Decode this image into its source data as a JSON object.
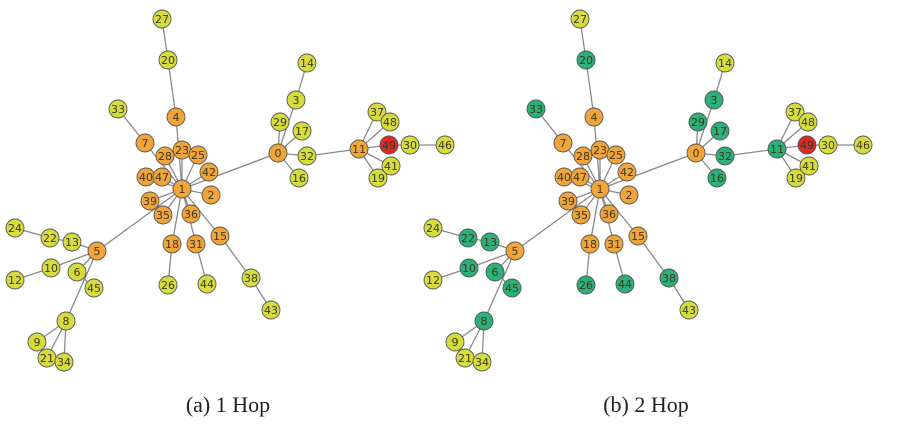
{
  "colors": {
    "yellow": "#d6dc3b",
    "orange": "#f0a43a",
    "green": "#2bb07a",
    "red": "#e0262a",
    "edge": "#8a8a8a",
    "stroke": "#555555"
  },
  "graph": {
    "nodes": [
      "0",
      "1",
      "2",
      "3",
      "4",
      "5",
      "6",
      "7",
      "8",
      "9",
      "10",
      "11",
      "12",
      "13",
      "14",
      "15",
      "16",
      "17",
      "18",
      "19",
      "20",
      "21",
      "22",
      "23",
      "24",
      "25",
      "26",
      "27",
      "28",
      "29",
      "30",
      "31",
      "32",
      "33",
      "34",
      "35",
      "36",
      "37",
      "38",
      "39",
      "40",
      "41",
      "42",
      "43",
      "44",
      "45",
      "46",
      "47",
      "48",
      "49"
    ],
    "edges": [
      [
        "27",
        "20"
      ],
      [
        "20",
        "4"
      ],
      [
        "4",
        "1"
      ],
      [
        "33",
        "7"
      ],
      [
        "7",
        "1"
      ],
      [
        "1",
        "28"
      ],
      [
        "1",
        "23"
      ],
      [
        "1",
        "25"
      ],
      [
        "1",
        "40"
      ],
      [
        "1",
        "47"
      ],
      [
        "1",
        "42"
      ],
      [
        "1",
        "2"
      ],
      [
        "1",
        "39"
      ],
      [
        "1",
        "35"
      ],
      [
        "1",
        "36"
      ],
      [
        "1",
        "18"
      ],
      [
        "1",
        "31"
      ],
      [
        "1",
        "15"
      ],
      [
        "1",
        "5"
      ],
      [
        "1",
        "0"
      ],
      [
        "18",
        "26"
      ],
      [
        "31",
        "44"
      ],
      [
        "15",
        "38"
      ],
      [
        "38",
        "43"
      ],
      [
        "5",
        "13"
      ],
      [
        "13",
        "22"
      ],
      [
        "22",
        "24"
      ],
      [
        "5",
        "10"
      ],
      [
        "10",
        "12"
      ],
      [
        "5",
        "6"
      ],
      [
        "6",
        "45"
      ],
      [
        "5",
        "8"
      ],
      [
        "8",
        "9"
      ],
      [
        "8",
        "21"
      ],
      [
        "8",
        "34"
      ],
      [
        "0",
        "3"
      ],
      [
        "3",
        "14"
      ],
      [
        "0",
        "29"
      ],
      [
        "0",
        "17"
      ],
      [
        "0",
        "16"
      ],
      [
        "0",
        "32"
      ],
      [
        "32",
        "11"
      ],
      [
        "11",
        "37"
      ],
      [
        "11",
        "48"
      ],
      [
        "11",
        "49"
      ],
      [
        "49",
        "30"
      ],
      [
        "30",
        "46"
      ],
      [
        "11",
        "41"
      ],
      [
        "11",
        "19"
      ]
    ]
  },
  "panels": [
    {
      "id": "a",
      "caption": "(a) 1 Hop",
      "colors": {
        "0": "orange",
        "1": "orange",
        "2": "orange",
        "4": "orange",
        "5": "orange",
        "7": "orange",
        "11": "orange",
        "15": "orange",
        "18": "orange",
        "23": "orange",
        "25": "orange",
        "28": "orange",
        "31": "orange",
        "35": "orange",
        "36": "orange",
        "39": "orange",
        "40": "orange",
        "42": "orange",
        "47": "orange",
        "49": "red"
      }
    },
    {
      "id": "b",
      "caption": "(b) 2 Hop",
      "colors": {
        "0": "orange",
        "1": "orange",
        "2": "orange",
        "4": "orange",
        "5": "orange",
        "7": "orange",
        "15": "orange",
        "18": "orange",
        "23": "orange",
        "25": "orange",
        "28": "orange",
        "31": "orange",
        "35": "orange",
        "36": "orange",
        "39": "orange",
        "40": "orange",
        "42": "orange",
        "47": "orange",
        "3": "green",
        "6": "green",
        "8": "green",
        "10": "green",
        "11": "green",
        "13": "green",
        "16": "green",
        "17": "green",
        "20": "green",
        "22": "green",
        "26": "green",
        "29": "green",
        "32": "green",
        "33": "green",
        "38": "green",
        "44": "green",
        "45": "green",
        "49": "red"
      }
    }
  ]
}
